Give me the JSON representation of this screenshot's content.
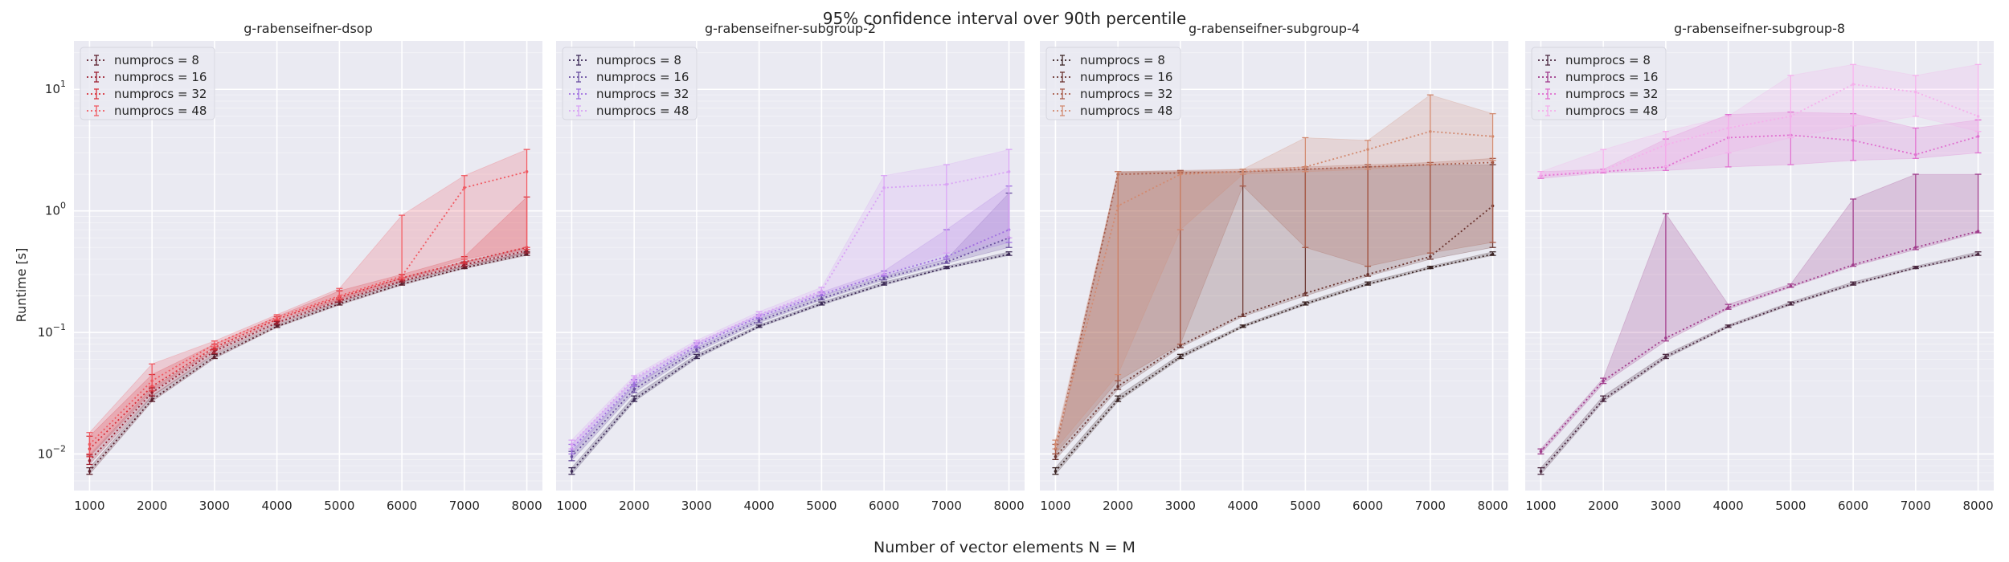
{
  "chart_data": {
    "type": "line",
    "title": "95% confidence interval over 90th percentile",
    "xlabel": "Number of vector elements N = M",
    "ylabel": "Runtime [s]",
    "y_scale": "log",
    "ylim": [
      0.005,
      25
    ],
    "x": [
      1000,
      2000,
      3000,
      4000,
      5000,
      6000,
      7000,
      8000
    ],
    "x_ticks": [
      "1000",
      "2000",
      "3000",
      "4000",
      "5000",
      "6000",
      "7000",
      "8000"
    ],
    "y_ticks": [
      {
        "value": 0.01,
        "base": "10",
        "exp": "−2"
      },
      {
        "value": 0.1,
        "base": "10",
        "exp": "−1"
      },
      {
        "value": 1,
        "base": "10",
        "exp": "0"
      },
      {
        "value": 10,
        "base": "10",
        "exp": "1"
      }
    ],
    "grid": true,
    "legend_placement": "top-left",
    "panels": [
      {
        "title": "g-rabenseifner-dsop",
        "series": [
          {
            "name": "numprocs = 8",
            "color": "#5c1f2c",
            "values": [
              0.0072,
              0.028,
              0.063,
              0.112,
              0.172,
              0.25,
              0.34,
              0.44
            ],
            "lower": [
              0.0068,
              0.027,
              0.061,
              0.11,
              0.168,
              0.245,
              0.335,
              0.43
            ],
            "upper": [
              0.0077,
              0.03,
              0.066,
              0.115,
              0.178,
              0.26,
              0.35,
              0.46
            ]
          },
          {
            "name": "numprocs = 16",
            "color": "#9c2030",
            "values": [
              0.0088,
              0.032,
              0.07,
              0.12,
              0.182,
              0.265,
              0.36,
              0.47
            ],
            "lower": [
              0.0082,
              0.03,
              0.067,
              0.117,
              0.178,
              0.26,
              0.35,
              0.45
            ],
            "upper": [
              0.0098,
              0.035,
              0.073,
              0.123,
              0.19,
              0.28,
              0.38,
              0.5
            ]
          },
          {
            "name": "numprocs = 32",
            "color": "#d9303a",
            "values": [
              0.011,
              0.036,
              0.075,
              0.128,
              0.195,
              0.28,
              0.38,
              0.5
            ],
            "lower": [
              0.0095,
              0.033,
              0.072,
              0.125,
              0.185,
              0.27,
              0.37,
              0.48
            ],
            "upper": [
              0.014,
              0.045,
              0.08,
              0.135,
              0.22,
              0.3,
              0.42,
              1.3
            ]
          },
          {
            "name": "numprocs = 48",
            "color": "#f05a62",
            "values": [
              0.012,
              0.04,
              0.08,
              0.133,
              0.2,
              0.29,
              1.55,
              2.1
            ],
            "lower": [
              0.01,
              0.036,
              0.076,
              0.128,
              0.19,
              0.28,
              0.4,
              0.5
            ],
            "upper": [
              0.015,
              0.055,
              0.085,
              0.14,
              0.23,
              0.92,
              1.95,
              3.2
            ]
          }
        ]
      },
      {
        "title": "g-rabenseifner-subgroup-2",
        "series": [
          {
            "name": "numprocs = 8",
            "color": "#3d2b57",
            "values": [
              0.0072,
              0.028,
              0.063,
              0.112,
              0.172,
              0.25,
              0.34,
              0.44
            ],
            "lower": [
              0.0068,
              0.027,
              0.061,
              0.11,
              0.168,
              0.245,
              0.335,
              0.43
            ],
            "upper": [
              0.0077,
              0.03,
              0.066,
              0.115,
              0.178,
              0.26,
              0.35,
              0.46
            ]
          },
          {
            "name": "numprocs = 16",
            "color": "#6a4fa0",
            "values": [
              0.0095,
              0.034,
              0.072,
              0.125,
              0.19,
              0.28,
              0.38,
              0.6
            ],
            "lower": [
              0.0088,
              0.032,
              0.069,
              0.12,
              0.185,
              0.27,
              0.37,
              0.5
            ],
            "upper": [
              0.0105,
              0.037,
              0.075,
              0.13,
              0.2,
              0.29,
              0.4,
              1.4
            ]
          },
          {
            "name": "numprocs = 32",
            "color": "#a070e0",
            "values": [
              0.011,
              0.038,
              0.078,
              0.135,
              0.205,
              0.3,
              0.42,
              0.7
            ],
            "lower": [
              0.01,
              0.036,
              0.075,
              0.13,
              0.2,
              0.29,
              0.4,
              0.55
            ],
            "upper": [
              0.012,
              0.041,
              0.082,
              0.14,
              0.215,
              0.32,
              0.7,
              1.6
            ]
          },
          {
            "name": "numprocs = 48",
            "color": "#d9a3f5",
            "values": [
              0.012,
              0.042,
              0.082,
              0.14,
              0.22,
              1.55,
              1.65,
              2.1
            ],
            "lower": [
              0.011,
              0.04,
              0.079,
              0.135,
              0.21,
              0.3,
              0.45,
              0.6
            ],
            "upper": [
              0.013,
              0.044,
              0.086,
              0.148,
              0.235,
              1.95,
              2.4,
              3.2
            ]
          }
        ]
      },
      {
        "title": "g-rabenseifner-subgroup-4",
        "series": [
          {
            "name": "numprocs = 8",
            "color": "#3a2424",
            "values": [
              0.0072,
              0.028,
              0.063,
              0.112,
              0.172,
              0.25,
              0.34,
              0.44
            ],
            "lower": [
              0.0068,
              0.027,
              0.061,
              0.11,
              0.168,
              0.245,
              0.335,
              0.43
            ],
            "upper": [
              0.0077,
              0.03,
              0.066,
              0.115,
              0.178,
              0.26,
              0.35,
              0.46
            ]
          },
          {
            "name": "numprocs = 16",
            "color": "#6b3530",
            "values": [
              0.0095,
              0.036,
              0.078,
              0.14,
              0.21,
              0.3,
              0.42,
              1.1
            ],
            "lower": [
              0.009,
              0.034,
              0.075,
              0.135,
              0.2,
              0.29,
              0.4,
              0.5
            ],
            "upper": [
              0.01,
              2.1,
              2.1,
              2.1,
              2.2,
              2.3,
              2.4,
              2.4
            ]
          },
          {
            "name": "numprocs = 32",
            "color": "#a85a48",
            "values": [
              0.011,
              2.0,
              2.05,
              2.1,
              2.2,
              2.3,
              2.4,
              2.5
            ],
            "lower": [
              0.01,
              0.04,
              0.08,
              1.6,
              0.5,
              0.35,
              0.45,
              0.55
            ],
            "upper": [
              0.012,
              2.1,
              2.15,
              2.2,
              2.3,
              2.4,
              2.5,
              2.7
            ]
          },
          {
            "name": "numprocs = 48",
            "color": "#d28a70",
            "values": [
              0.012,
              1.1,
              2.0,
              2.1,
              2.3,
              3.2,
              4.5,
              4.1
            ],
            "lower": [
              0.011,
              0.045,
              0.7,
              2.0,
              2.1,
              2.2,
              2.4,
              2.6
            ],
            "upper": [
              0.013,
              2.1,
              2.1,
              2.2,
              4.0,
              3.8,
              9.0,
              6.3
            ]
          }
        ]
      },
      {
        "title": "g-rabenseifner-subgroup-8",
        "series": [
          {
            "name": "numprocs = 8",
            "color": "#4a2840",
            "values": [
              0.0072,
              0.028,
              0.063,
              0.112,
              0.172,
              0.25,
              0.34,
              0.44
            ],
            "lower": [
              0.0068,
              0.027,
              0.061,
              0.11,
              0.168,
              0.245,
              0.335,
              0.43
            ],
            "upper": [
              0.0077,
              0.03,
              0.066,
              0.115,
              0.178,
              0.26,
              0.35,
              0.46
            ]
          },
          {
            "name": "numprocs = 16",
            "color": "#a03c8c",
            "values": [
              0.0105,
              0.04,
              0.09,
              0.16,
              0.24,
              0.36,
              0.5,
              0.68
            ],
            "lower": [
              0.01,
              0.038,
              0.085,
              0.155,
              0.235,
              0.35,
              0.48,
              0.66
            ],
            "upper": [
              0.011,
              0.042,
              0.95,
              0.17,
              0.25,
              1.25,
              2.0,
              2.0
            ]
          },
          {
            "name": "numprocs = 32",
            "color": "#e070d0",
            "values": [
              1.95,
              2.1,
              2.3,
              4.0,
              4.2,
              3.8,
              2.9,
              4.1
            ],
            "lower": [
              1.85,
              2.05,
              2.15,
              2.3,
              2.4,
              2.6,
              2.7,
              3.0
            ],
            "upper": [
              2.1,
              2.2,
              3.9,
              6.2,
              6.5,
              6.3,
              4.8,
              5.6
            ]
          },
          {
            "name": "numprocs = 48",
            "color": "#f5b0ec",
            "values": [
              2.0,
              2.15,
              3.5,
              4.8,
              6.0,
              11.0,
              9.5,
              6.0
            ],
            "lower": [
              1.9,
              2.1,
              2.3,
              3.0,
              4.0,
              5.0,
              6.0,
              4.5
            ],
            "upper": [
              2.1,
              3.2,
              4.5,
              6.0,
              13.0,
              16.0,
              13.0,
              16.0
            ]
          }
        ]
      }
    ]
  }
}
